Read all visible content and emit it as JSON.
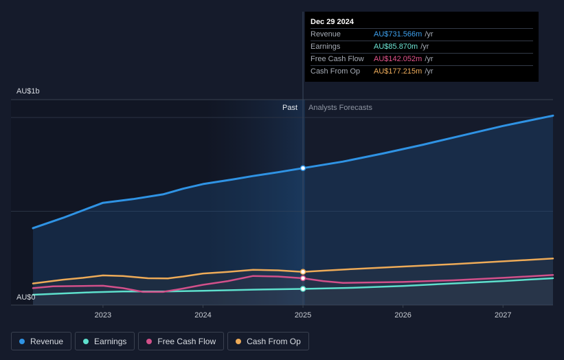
{
  "tooltip": {
    "date": "Dec 29 2024",
    "rows": [
      {
        "label": "Revenue",
        "value": "AU$731.566m",
        "unit": "/yr",
        "color": "#3ea1ee"
      },
      {
        "label": "Earnings",
        "value": "AU$85.870m",
        "unit": "/yr",
        "color": "#6ee7d6"
      },
      {
        "label": "Free Cash Flow",
        "value": "AU$142.052m",
        "unit": "/yr",
        "color": "#e5558d"
      },
      {
        "label": "Cash From Op",
        "value": "AU$177.215m",
        "unit": "/yr",
        "color": "#f1ae5c"
      }
    ]
  },
  "legend": [
    {
      "label": "Revenue",
      "color": "#2f93e4"
    },
    {
      "label": "Earnings",
      "color": "#5ee0cd"
    },
    {
      "label": "Free Cash Flow",
      "color": "#d2508a"
    },
    {
      "label": "Cash From Op",
      "color": "#eeab58"
    }
  ],
  "chart_data": {
    "type": "line",
    "y_axis_labels": {
      "top": "AU$1b",
      "bottom": "AU$0"
    },
    "ylim": [
      0,
      1000
    ],
    "xlim": [
      2022.3,
      2027.5
    ],
    "x_ticks": [
      2023,
      2024,
      2025,
      2026,
      2027
    ],
    "divider_x": 2025,
    "past_label": "Past",
    "forecast_label": "Analysts Forecasts",
    "series": [
      {
        "name": "Revenue",
        "color": "#2f93e4",
        "points": [
          [
            2022.3,
            410
          ],
          [
            2022.6,
            465
          ],
          [
            2022.8,
            505
          ],
          [
            2023.0,
            545
          ],
          [
            2023.3,
            565
          ],
          [
            2023.6,
            590
          ],
          [
            2023.8,
            620
          ],
          [
            2024.0,
            645
          ],
          [
            2024.3,
            670
          ],
          [
            2024.5,
            688
          ],
          [
            2024.75,
            708
          ],
          [
            2025.0,
            730
          ],
          [
            2025.4,
            765
          ],
          [
            2025.8,
            808
          ],
          [
            2026.2,
            855
          ],
          [
            2026.6,
            905
          ],
          [
            2027.0,
            955
          ],
          [
            2027.5,
            1010
          ]
        ]
      },
      {
        "name": "Earnings",
        "color": "#5ee0cd",
        "points": [
          [
            2022.3,
            55
          ],
          [
            2022.6,
            62
          ],
          [
            2022.9,
            68
          ],
          [
            2023.2,
            72
          ],
          [
            2023.6,
            72
          ],
          [
            2024.0,
            76
          ],
          [
            2024.5,
            82
          ],
          [
            2025.0,
            86
          ],
          [
            2025.5,
            92
          ],
          [
            2026.0,
            102
          ],
          [
            2026.5,
            115
          ],
          [
            2027.0,
            128
          ],
          [
            2027.5,
            143
          ]
        ]
      },
      {
        "name": "Free Cash Flow",
        "color": "#d2508a",
        "points": [
          [
            2022.3,
            90
          ],
          [
            2022.5,
            100
          ],
          [
            2022.8,
            102
          ],
          [
            2023.0,
            103
          ],
          [
            2023.2,
            90
          ],
          [
            2023.4,
            70
          ],
          [
            2023.6,
            70
          ],
          [
            2023.8,
            88
          ],
          [
            2024.0,
            108
          ],
          [
            2024.25,
            128
          ],
          [
            2024.5,
            155
          ],
          [
            2024.75,
            152
          ],
          [
            2025.0,
            143
          ],
          [
            2025.2,
            128
          ],
          [
            2025.4,
            118
          ],
          [
            2026.0,
            123
          ],
          [
            2026.5,
            132
          ],
          [
            2027.0,
            145
          ],
          [
            2027.5,
            160
          ]
        ]
      },
      {
        "name": "Cash From Op",
        "color": "#eeab58",
        "points": [
          [
            2022.3,
            115
          ],
          [
            2022.6,
            135
          ],
          [
            2022.8,
            145
          ],
          [
            2023.0,
            158
          ],
          [
            2023.2,
            155
          ],
          [
            2023.45,
            143
          ],
          [
            2023.65,
            142
          ],
          [
            2023.8,
            152
          ],
          [
            2024.0,
            168
          ],
          [
            2024.25,
            177
          ],
          [
            2024.5,
            188
          ],
          [
            2024.75,
            185
          ],
          [
            2025.0,
            177
          ],
          [
            2025.2,
            183
          ],
          [
            2025.5,
            192
          ],
          [
            2026.0,
            205
          ],
          [
            2026.5,
            218
          ],
          [
            2027.0,
            233
          ],
          [
            2027.5,
            248
          ]
        ]
      }
    ]
  }
}
